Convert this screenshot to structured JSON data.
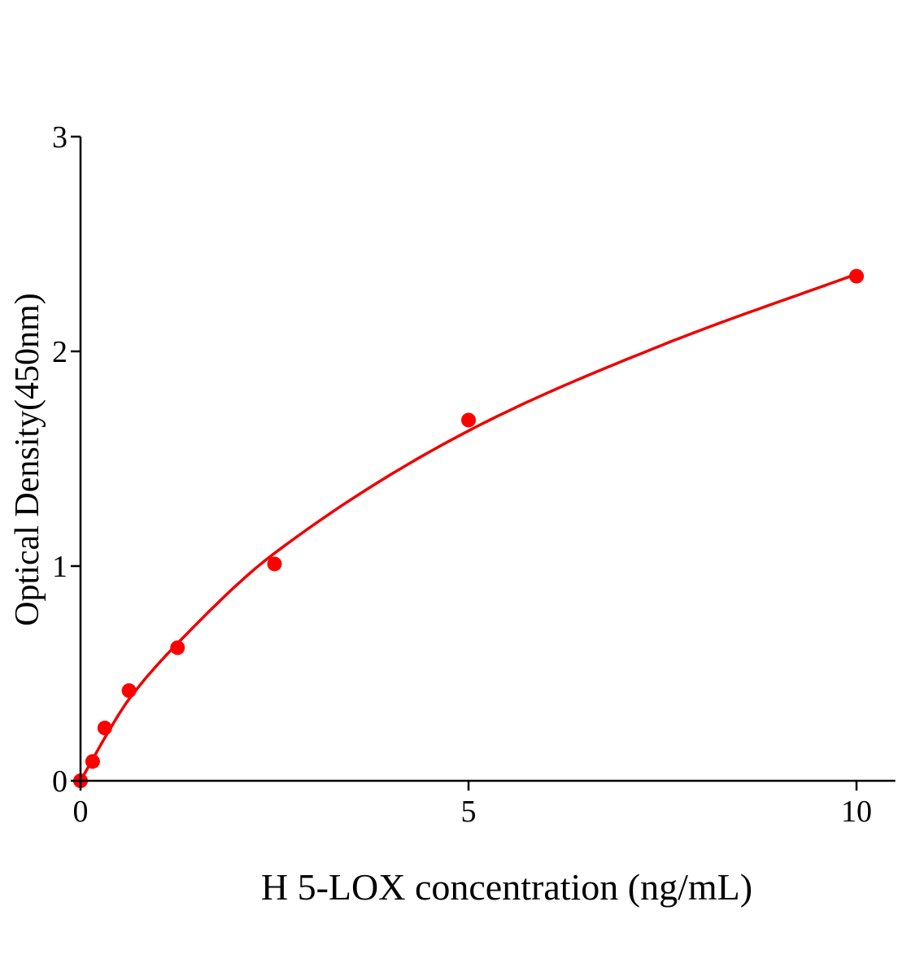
{
  "chart_data": {
    "type": "scatter",
    "title": "",
    "xlabel": "H 5-LOX concentration (ng/mL)",
    "ylabel": "Optical Density(450nm)",
    "xlim": [
      0,
      10.5
    ],
    "ylim": [
      0,
      3
    ],
    "xticks": [
      0,
      5,
      10
    ],
    "yticks": [
      0,
      1,
      2,
      3
    ],
    "grid": false,
    "legend": "none",
    "series": [
      {
        "x": [
          0,
          0.156,
          0.3125,
          0.625,
          1.25,
          2.5,
          5,
          10
        ],
        "y": [
          0,
          0.09,
          0.246,
          0.42,
          0.62,
          1.01,
          1.68,
          2.35
        ],
        "color": "#ff0000"
      }
    ],
    "fit_curve": {
      "x": [
        0,
        0.156,
        0.3125,
        0.625,
        1.25,
        2.5,
        5,
        7.5,
        10
      ],
      "y": [
        0,
        0.1,
        0.2,
        0.38,
        0.64,
        1.06,
        1.63,
        2.03,
        2.36
      ],
      "color": "#ee0000"
    }
  }
}
